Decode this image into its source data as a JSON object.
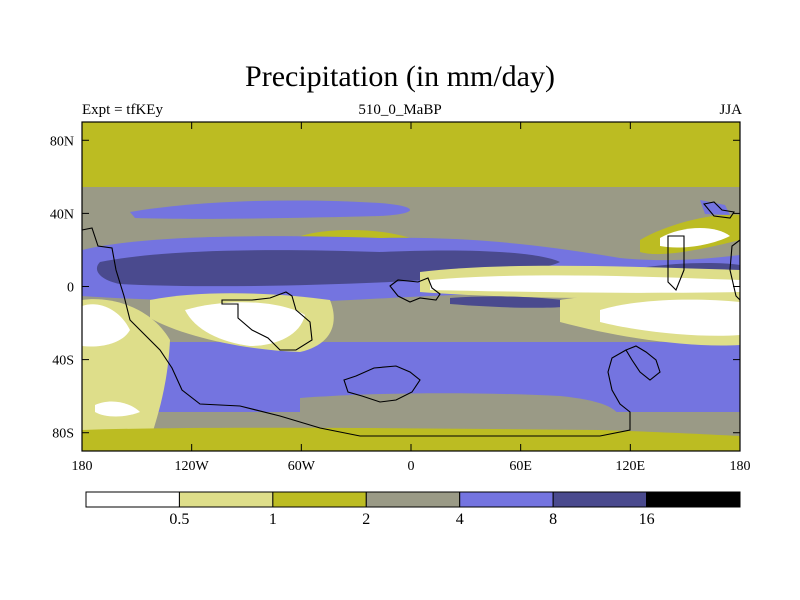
{
  "chart_data": {
    "type": "heatmap",
    "title": "Precipitation (in mm/day)",
    "left_label": "Expt = tfKEy",
    "center_label": "510_0_MaBP",
    "right_label": "JJA",
    "xlim": [
      -180,
      180
    ],
    "ylim": [
      -90,
      90
    ],
    "x_ticks": [
      {
        "value": -180,
        "label": "180"
      },
      {
        "value": -120,
        "label": "120W"
      },
      {
        "value": -60,
        "label": "60W"
      },
      {
        "value": 0,
        "label": "0"
      },
      {
        "value": 60,
        "label": "60E"
      },
      {
        "value": 120,
        "label": "120E"
      },
      {
        "value": 180,
        "label": "180"
      }
    ],
    "y_ticks": [
      {
        "value": 80,
        "label": "80N"
      },
      {
        "value": 40,
        "label": "40N"
      },
      {
        "value": 0,
        "label": "0"
      },
      {
        "value": -40,
        "label": "40S"
      },
      {
        "value": -80,
        "label": "80S"
      }
    ],
    "colorbar": {
      "levels": [
        "0.5",
        "1",
        "2",
        "4",
        "8",
        "16"
      ],
      "colors": [
        "#ffffff",
        "#dede8a",
        "#bcbc22",
        "#9a9a86",
        "#7474e0",
        "#4a4a8e",
        "#000000"
      ]
    },
    "field_summary": [
      {
        "lat_range": [
          60,
          90
        ],
        "category": "1-2"
      },
      {
        "lat_range": [
          42,
          55
        ],
        "category": "2-4"
      },
      {
        "lat_range": [
          36,
          40
        ],
        "category": "4-8",
        "lon_range": [
          -150,
          -35
        ]
      },
      {
        "lat_range": [
          5,
          35
        ],
        "category": "2-4"
      },
      {
        "lat_range": [
          5,
          25
        ],
        "category": "8-16",
        "lon_range": [
          -150,
          90
        ]
      },
      {
        "lat_range": [
          -8,
          3
        ],
        "category": "<0.5",
        "lon_range": [
          15,
          180
        ]
      },
      {
        "lat_range": [
          -30,
          -10
        ],
        "category": "<0.5",
        "lon_range": [
          -120,
          -60
        ]
      },
      {
        "lat_range": [
          -30,
          -10
        ],
        "category": "<0.5",
        "lon_range": [
          120,
          180
        ]
      },
      {
        "lat_range": [
          -65,
          -45
        ],
        "category": "4-8"
      },
      {
        "lat_range": [
          -82,
          -65
        ],
        "category": "2-4"
      },
      {
        "lat_range": [
          -90,
          -82
        ],
        "category": "1-2"
      }
    ]
  }
}
